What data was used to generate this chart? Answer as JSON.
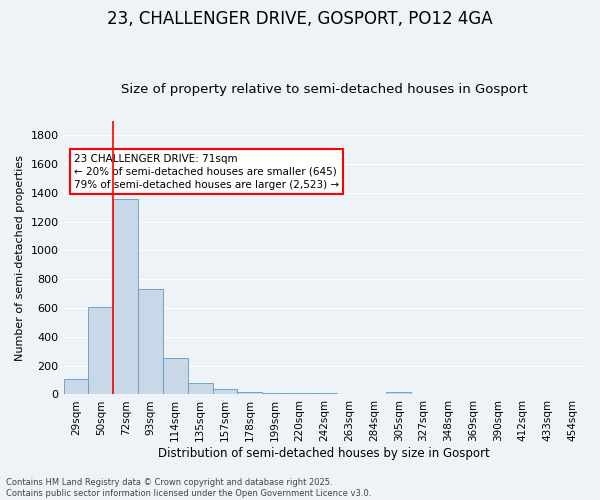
{
  "title": "23, CHALLENGER DRIVE, GOSPORT, PO12 4GA",
  "subtitle": "Size of property relative to semi-detached houses in Gosport",
  "xlabel": "Distribution of semi-detached houses by size in Gosport",
  "ylabel": "Number of semi-detached properties",
  "footer_line1": "Contains HM Land Registry data © Crown copyright and database right 2025.",
  "footer_line2": "Contains public sector information licensed under the Open Government Licence v3.0.",
  "categories": [
    "29sqm",
    "50sqm",
    "72sqm",
    "93sqm",
    "114sqm",
    "135sqm",
    "157sqm",
    "178sqm",
    "199sqm",
    "220sqm",
    "242sqm",
    "263sqm",
    "284sqm",
    "305sqm",
    "327sqm",
    "348sqm",
    "369sqm",
    "390sqm",
    "412sqm",
    "433sqm",
    "454sqm"
  ],
  "values": [
    110,
    610,
    1360,
    730,
    250,
    80,
    35,
    15,
    10,
    10,
    10,
    0,
    0,
    20,
    0,
    0,
    0,
    0,
    0,
    0,
    0
  ],
  "bar_color": "#c8d8e8",
  "bar_edge_color": "#6699bb",
  "red_line_index": 2,
  "annotation_title": "23 CHALLENGER DRIVE: 71sqm",
  "annotation_line1": "← 20% of semi-detached houses are smaller (645)",
  "annotation_line2": "79% of semi-detached houses are larger (2,523) →",
  "ylim": [
    0,
    1900
  ],
  "yticks": [
    0,
    200,
    400,
    600,
    800,
    1000,
    1200,
    1400,
    1600,
    1800
  ],
  "background_color": "#eef3f8",
  "grid_color": "#ffffff",
  "title_fontsize": 12,
  "subtitle_fontsize": 9.5,
  "ylabel_fontsize": 8,
  "xlabel_fontsize": 8.5,
  "tick_fontsize": 7.5,
  "ytick_fontsize": 8,
  "footer_fontsize": 6,
  "ann_fontsize": 7.5
}
